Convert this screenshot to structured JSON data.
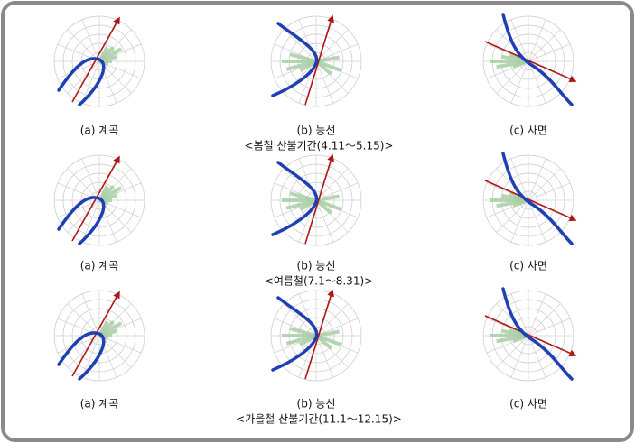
{
  "rows": [
    {
      "panels": [
        {
          "label": "(a) 계곡"
        },
        {
          "label": "(b) 능선"
        },
        {
          "label": "(c) 사면"
        }
      ],
      "caption": "<봄철 산불기간(4.11～5.15)>"
    },
    {
      "panels": [
        {
          "label": "(a) 계곡"
        },
        {
          "label": "(b) 능선"
        },
        {
          "label": "(c) 사면"
        }
      ],
      "caption": "<여름철(7.1～8.31)>"
    },
    {
      "panels": [
        {
          "label": "(a) 계곡"
        },
        {
          "label": "(b) 능선"
        },
        {
          "label": "(c) 사면"
        }
      ],
      "caption": "<가을철 산불기간(11.1～12.15)>"
    }
  ]
}
